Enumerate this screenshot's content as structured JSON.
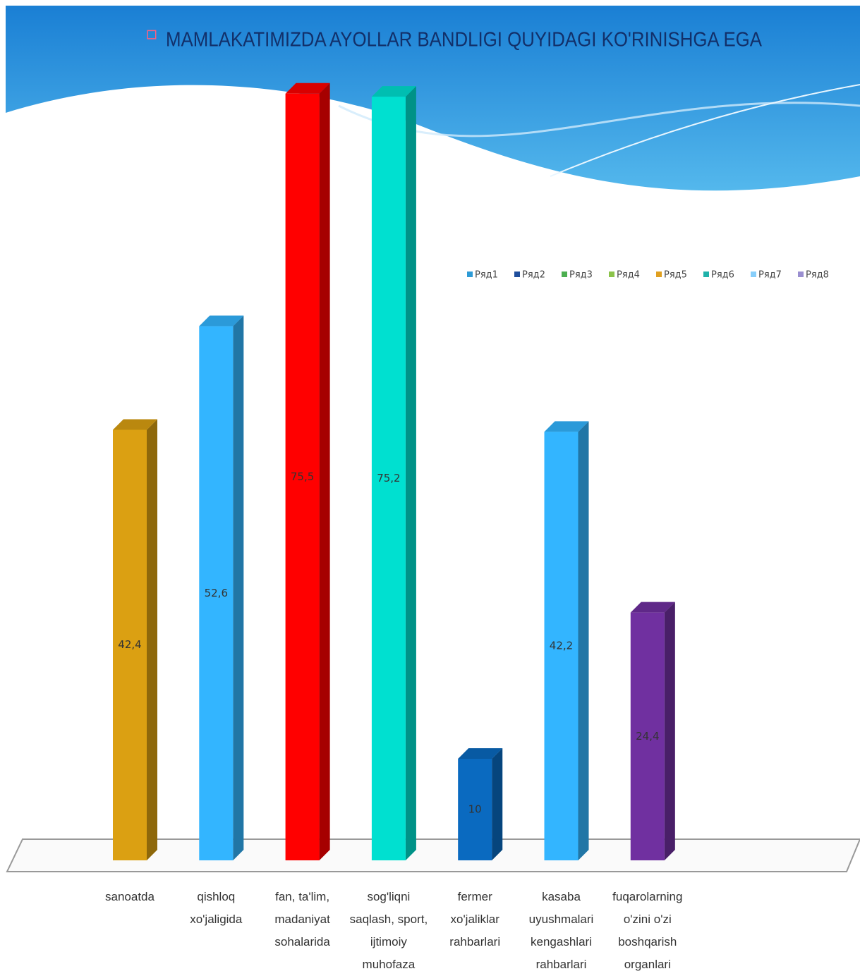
{
  "chart_data": {
    "type": "bar3d",
    "title": "MAMLAKATIMIZDA AYOLLAR BANDLIGI QUYIDAGI KO'RINISHGA EGA",
    "categories": [
      "sanoatda",
      "qishloq xo'jaligida",
      "fan, ta'lim, madaniyat sohalarida",
      "sog'liqni saqlash, sport, ijtimoiy muhofaza",
      "fermer xo'jaliklar rahbarlari",
      "kasaba uyushmalari kengashlari rahbarlari",
      "fuqarolarning o'zini o'zi boshqarish organlari"
    ],
    "values": [
      42.4,
      52.6,
      75.5,
      75.2,
      10,
      42.2,
      24.4
    ],
    "value_labels": [
      "42,4",
      "52,6",
      "75,5",
      "75,2",
      "10",
      "42,2",
      "24,4"
    ],
    "colors": [
      "#dba012",
      "#33b5ff",
      "#ff0000",
      "#00e0d0",
      "#0a6ac0",
      "#33b5ff",
      "#7030a0"
    ],
    "legend": [
      {
        "name": "Ряд1",
        "color": "#2e9bd6"
      },
      {
        "name": "Ряд2",
        "color": "#1f4e9c"
      },
      {
        "name": "Ряд3",
        "color": "#4caf50"
      },
      {
        "name": "Ряд4",
        "color": "#8bc34a"
      },
      {
        "name": "Ряд5",
        "color": "#e0a020"
      },
      {
        "name": "Ряд6",
        "color": "#20b2aa"
      },
      {
        "name": "Ряд7",
        "color": "#87cefa"
      },
      {
        "name": "Ряд8",
        "color": "#9a8fd0"
      }
    ]
  }
}
